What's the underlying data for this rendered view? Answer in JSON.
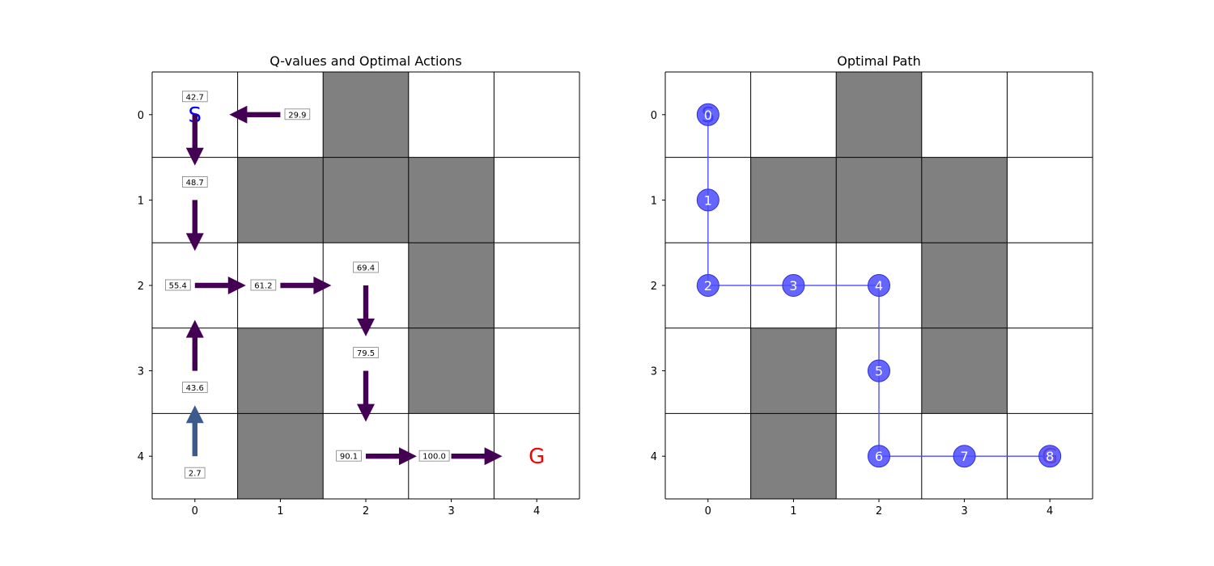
{
  "figure": {
    "left_title": "Q-values and Optimal Actions",
    "right_title": "Optimal Path",
    "start_label": "S",
    "goal_label": "G"
  },
  "colors": {
    "wall": "#808080",
    "grid_line": "#000000",
    "start_label": "#0000ff",
    "goal_label": "#ff0000",
    "arrow_main": "#440154",
    "arrow_low": "#3b5b8a",
    "path": "#4a4aff"
  },
  "chart_data": [
    {
      "type": "heatmap",
      "title": "Q-values and Optimal Actions",
      "grid_size": [
        5,
        5
      ],
      "x_ticks": [
        0,
        1,
        2,
        3,
        4
      ],
      "y_ticks": [
        0,
        1,
        2,
        3,
        4
      ],
      "walls": [
        [
          0,
          2
        ],
        [
          1,
          1
        ],
        [
          1,
          2
        ],
        [
          1,
          3
        ],
        [
          2,
          3
        ],
        [
          3,
          1
        ],
        [
          3,
          3
        ],
        [
          4,
          1
        ]
      ],
      "start": [
        0,
        0
      ],
      "goal": [
        4,
        4
      ],
      "q_cells": [
        {
          "row": 0,
          "col": 0,
          "q": "42.7",
          "action": "down"
        },
        {
          "row": 0,
          "col": 1,
          "q": "29.9",
          "action": "left"
        },
        {
          "row": 1,
          "col": 0,
          "q": "48.7",
          "action": "down"
        },
        {
          "row": 2,
          "col": 0,
          "q": "55.4",
          "action": "right"
        },
        {
          "row": 2,
          "col": 1,
          "q": "61.2",
          "action": "right"
        },
        {
          "row": 2,
          "col": 2,
          "q": "69.4",
          "action": "down"
        },
        {
          "row": 3,
          "col": 0,
          "q": "43.6",
          "action": "up"
        },
        {
          "row": 3,
          "col": 2,
          "q": "79.5",
          "action": "down"
        },
        {
          "row": 4,
          "col": 0,
          "q": "2.7",
          "action": "up"
        },
        {
          "row": 4,
          "col": 2,
          "q": "90.1",
          "action": "right"
        },
        {
          "row": 4,
          "col": 3,
          "q": "100.0",
          "action": "right"
        }
      ]
    },
    {
      "type": "scatter",
      "title": "Optimal Path",
      "grid_size": [
        5,
        5
      ],
      "x_ticks": [
        0,
        1,
        2,
        3,
        4
      ],
      "y_ticks": [
        0,
        1,
        2,
        3,
        4
      ],
      "walls": [
        [
          0,
          2
        ],
        [
          1,
          1
        ],
        [
          1,
          2
        ],
        [
          1,
          3
        ],
        [
          2,
          3
        ],
        [
          3,
          1
        ],
        [
          3,
          3
        ],
        [
          4,
          1
        ]
      ],
      "start": [
        0,
        0
      ],
      "goal": [
        4,
        4
      ],
      "path": [
        {
          "step": "0",
          "row": 0,
          "col": 0
        },
        {
          "step": "1",
          "row": 1,
          "col": 0
        },
        {
          "step": "2",
          "row": 2,
          "col": 0
        },
        {
          "step": "3",
          "row": 2,
          "col": 1
        },
        {
          "step": "4",
          "row": 2,
          "col": 2
        },
        {
          "step": "5",
          "row": 3,
          "col": 2
        },
        {
          "step": "6",
          "row": 4,
          "col": 2
        },
        {
          "step": "7",
          "row": 4,
          "col": 3
        },
        {
          "step": "8",
          "row": 4,
          "col": 4
        }
      ]
    }
  ]
}
